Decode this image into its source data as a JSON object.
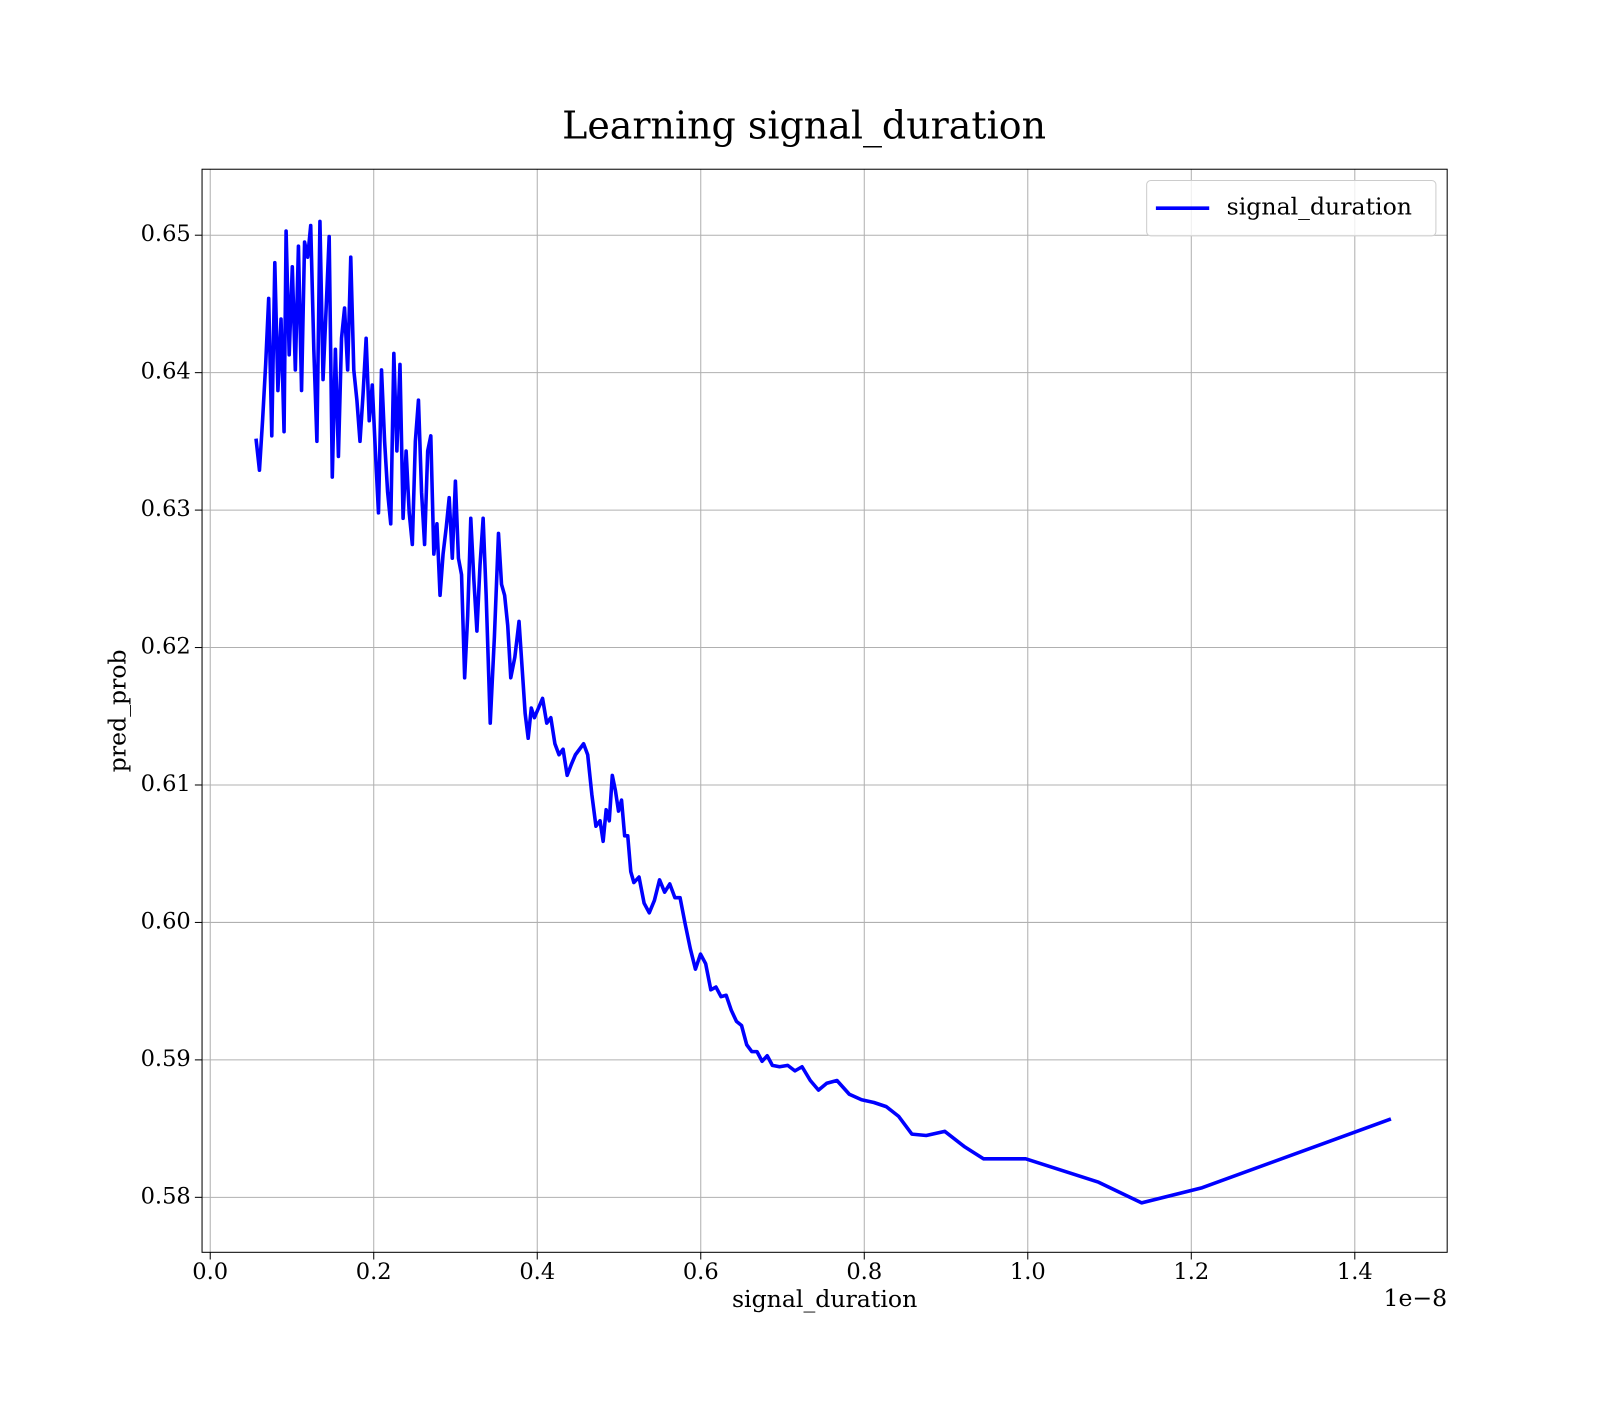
{
  "chart_data": {
    "type": "line",
    "title": "Learning signal_duration",
    "x_label": "signal_duration",
    "y_label": "pred_prob",
    "x_offset_text": "1e−8",
    "grid": true,
    "legend": "upper right",
    "xlim": [
      -0.01,
      1.513
    ],
    "ylim": [
      0.576,
      0.6548
    ],
    "xticks": [
      {
        "value": 0,
        "label": "0.0"
      },
      0.2,
      0.4,
      0.6,
      0.8,
      {
        "value": 1,
        "label": "1.0"
      },
      1.2,
      1.4
    ],
    "yticks": [
      0.58,
      0.59,
      {
        "value": 0.6,
        "label": "0.60"
      },
      0.61,
      0.62,
      0.63,
      0.64,
      0.65
    ],
    "x": [
      0.056,
      0.0602,
      0.064,
      0.0678,
      0.0715,
      0.0753,
      0.079,
      0.0828,
      0.0866,
      0.0903,
      0.0928,
      0.0966,
      0.1004,
      0.1041,
      0.1079,
      0.1117,
      0.1154,
      0.1192,
      0.1229,
      0.1267,
      0.1305,
      0.1342,
      0.138,
      0.1418,
      0.1455,
      0.1493,
      0.1531,
      0.1568,
      0.1606,
      0.1643,
      0.1681,
      0.1719,
      0.1756,
      0.1794,
      0.1832,
      0.1869,
      0.1907,
      0.1945,
      0.1982,
      0.202,
      0.2058,
      0.2095,
      0.2133,
      0.217,
      0.2208,
      0.2246,
      0.2283,
      0.2321,
      0.2359,
      0.2396,
      0.2434,
      0.2472,
      0.2509,
      0.2547,
      0.2585,
      0.2622,
      0.266,
      0.2698,
      0.2735,
      0.2773,
      0.2811,
      0.2848,
      0.2886,
      0.2923,
      0.2961,
      0.2999,
      0.3036,
      0.3074,
      0.3112,
      0.3149,
      0.3187,
      0.3225,
      0.3262,
      0.33,
      0.3338,
      0.3375,
      0.3425,
      0.3476,
      0.3526,
      0.3563,
      0.3601,
      0.3639,
      0.3676,
      0.3726,
      0.3777,
      0.3814,
      0.3852,
      0.3889,
      0.3927,
      0.3965,
      0.4015,
      0.4065,
      0.4116,
      0.4166,
      0.4216,
      0.4266,
      0.4316,
      0.4366,
      0.4417,
      0.4467,
      0.4517,
      0.4567,
      0.4617,
      0.4668,
      0.4718,
      0.4768,
      0.4806,
      0.4843,
      0.4881,
      0.4918,
      0.4956,
      0.4994,
      0.5031,
      0.5069,
      0.5107,
      0.5144,
      0.5182,
      0.5245,
      0.5307,
      0.537,
      0.5433,
      0.5496,
      0.5558,
      0.5621,
      0.5684,
      0.5747,
      0.5809,
      0.5872,
      0.5935,
      0.5997,
      0.606,
      0.6123,
      0.6186,
      0.6248,
      0.6311,
      0.6374,
      0.6437,
      0.6499,
      0.6562,
      0.6625,
      0.6688,
      0.675,
      0.6813,
      0.6876,
      0.6964,
      0.7064,
      0.7152,
      0.7239,
      0.734,
      0.744,
      0.7541,
      0.7666,
      0.7817,
      0.7967,
      0.8118,
      0.8269,
      0.8419,
      0.8582,
      0.8758,
      0.8984,
      0.9222,
      0.946,
      0.9975,
      1.0866,
      1.1393,
      1.2133,
      1.4442
    ],
    "series": [
      {
        "name": "signal_duration",
        "color": "#0000ff",
        "values": [
          0.6352,
          0.6329,
          0.6365,
          0.6406,
          0.6454,
          0.6354,
          0.648,
          0.6387,
          0.6439,
          0.6357,
          0.6503,
          0.6413,
          0.6477,
          0.6402,
          0.6492,
          0.6387,
          0.6495,
          0.6484,
          0.6507,
          0.6417,
          0.635,
          0.651,
          0.6395,
          0.6447,
          0.6499,
          0.6324,
          0.6417,
          0.6339,
          0.6425,
          0.6447,
          0.6402,
          0.6484,
          0.6402,
          0.638,
          0.635,
          0.6384,
          0.6425,
          0.6365,
          0.6391,
          0.6343,
          0.6298,
          0.6402,
          0.635,
          0.6313,
          0.629,
          0.6414,
          0.6343,
          0.6406,
          0.6294,
          0.6343,
          0.6298,
          0.6275,
          0.635,
          0.638,
          0.6313,
          0.6275,
          0.6343,
          0.6354,
          0.6268,
          0.629,
          0.6238,
          0.6268,
          0.6287,
          0.6309,
          0.6265,
          0.6321,
          0.6265,
          0.6253,
          0.6178,
          0.6223,
          0.6294,
          0.6249,
          0.6212,
          0.626,
          0.6294,
          0.6238,
          0.6145,
          0.6208,
          0.6283,
          0.6246,
          0.6238,
          0.6216,
          0.6178,
          0.6193,
          0.6219,
          0.6186,
          0.6152,
          0.6134,
          0.6156,
          0.6149,
          0.6156,
          0.6163,
          0.6145,
          0.6149,
          0.613,
          0.6122,
          0.6126,
          0.6107,
          0.6115,
          0.6122,
          0.6126,
          0.613,
          0.6122,
          0.6093,
          0.607,
          0.6074,
          0.6059,
          0.6082,
          0.6074,
          0.6107,
          0.6096,
          0.6081,
          0.6089,
          0.6063,
          0.6063,
          0.6037,
          0.6029,
          0.6033,
          0.6014,
          0.6007,
          0.6016,
          0.6031,
          0.6022,
          0.6028,
          0.6018,
          0.6018,
          0.5999,
          0.5981,
          0.5966,
          0.5977,
          0.597,
          0.5951,
          0.5953,
          0.5946,
          0.5947,
          0.5936,
          0.5928,
          0.5925,
          0.5911,
          0.5906,
          0.5906,
          0.5899,
          0.5903,
          0.5896,
          0.5895,
          0.5896,
          0.5892,
          0.5895,
          0.5885,
          0.5878,
          0.5883,
          0.5885,
          0.5875,
          0.5871,
          0.5869,
          0.5866,
          0.5859,
          0.5846,
          0.5845,
          0.5848,
          0.5837,
          0.5828,
          0.5828,
          0.5811,
          0.5796,
          0.5807,
          0.5857
        ]
      }
    ]
  }
}
